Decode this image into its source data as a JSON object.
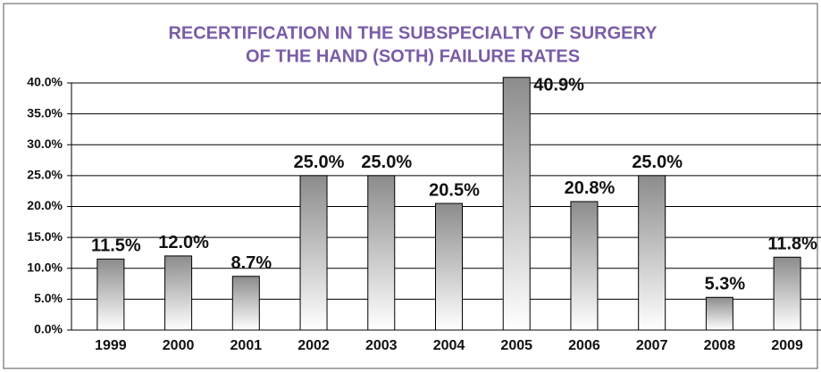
{
  "chart_data": {
    "type": "bar",
    "title": [
      "RECERTIFICATION IN THE SUBSPECIALTY OF SURGERY",
      "OF THE HAND (SOTH) FAILURE RATES"
    ],
    "categories": [
      "1999",
      "2000",
      "2001",
      "2002",
      "2003",
      "2004",
      "2005",
      "2006",
      "2007",
      "2008",
      "2009"
    ],
    "values": [
      11.5,
      12.0,
      8.7,
      25.0,
      25.0,
      20.5,
      40.9,
      20.8,
      25.0,
      5.3,
      11.8
    ],
    "value_labels": [
      "11.5%",
      "12.0%",
      "8.7%",
      "25.0%",
      "25.0%",
      "20.5%",
      "40.9%",
      "20.8%",
      "25.0%",
      "5.3%",
      "11.8%"
    ],
    "color": "#8c8c8c",
    "ylim": [
      0,
      40
    ],
    "yticks": [
      {
        "value": 0,
        "label": "0.0%"
      },
      {
        "value": 5,
        "label": "5.0%"
      },
      {
        "value": 10,
        "label": "10.0%"
      },
      {
        "value": 15,
        "label": "15.0%"
      },
      {
        "value": 20,
        "label": "20.0%"
      },
      {
        "value": 25,
        "label": "25.0%"
      },
      {
        "value": 30,
        "label": "30.0%"
      },
      {
        "value": 35,
        "label": "35.0%"
      },
      {
        "value": 40,
        "label": "40.0%"
      }
    ],
    "grid": true
  }
}
